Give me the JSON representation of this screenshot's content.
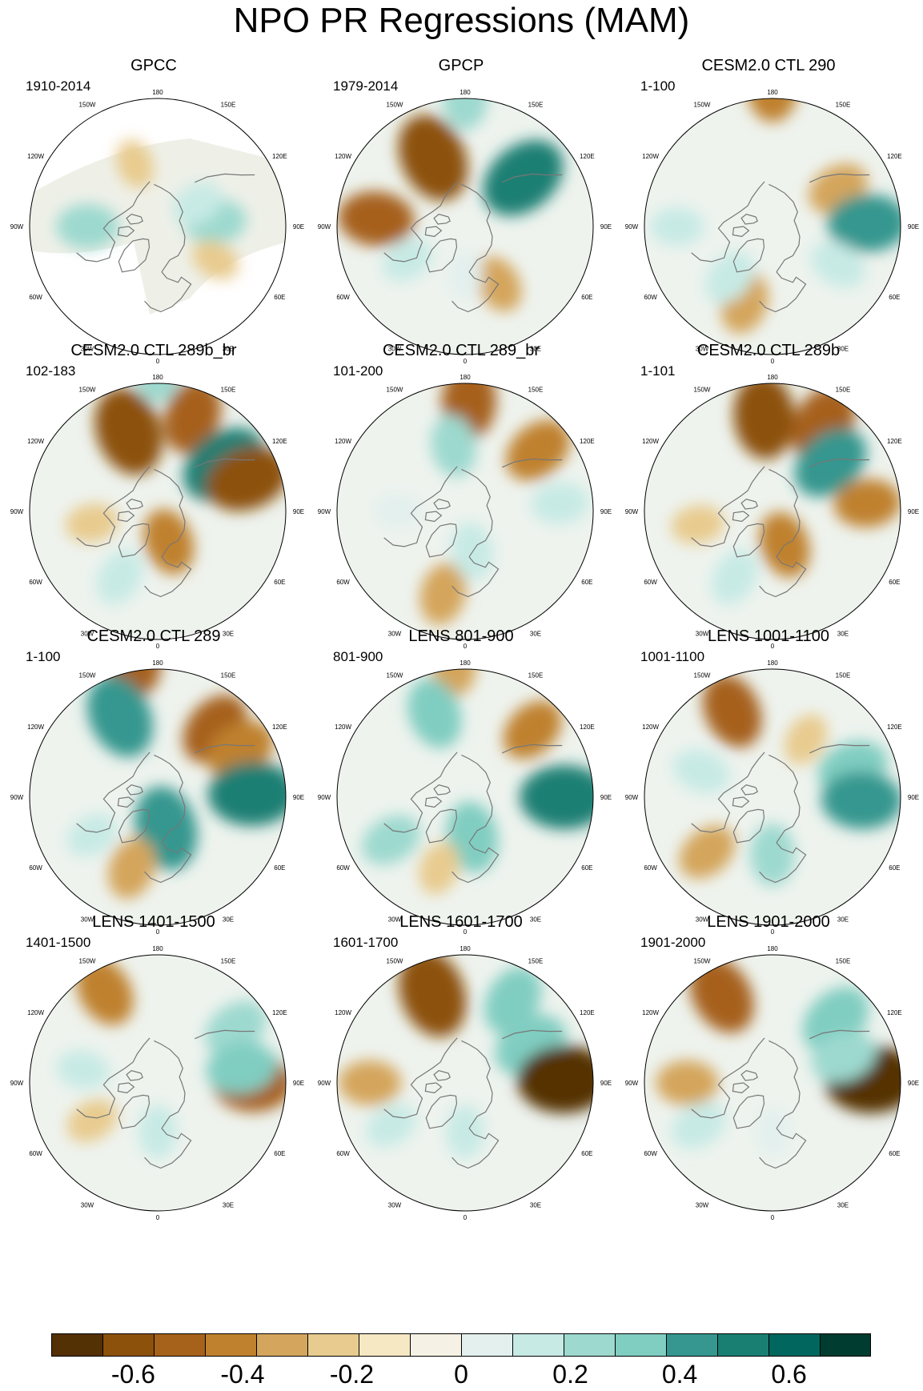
{
  "title": "NPO PR Regressions (MAM)",
  "longitude_labels": [
    "180",
    "150E",
    "120E",
    "90E",
    "60E",
    "30E",
    "0",
    "30W",
    "60W",
    "90W",
    "120W",
    "150W"
  ],
  "panels": [
    {
      "title": "GPCC",
      "period": "1910-2014",
      "partial_coverage": true,
      "anomalies": [
        {
          "lon": 270,
          "colat": 42,
          "value": 0.3
        },
        {
          "lon": 95,
          "colat": 35,
          "value": 0.3
        },
        {
          "lon": 120,
          "colat": 28,
          "value": 0.2
        },
        {
          "lon": 200,
          "colat": 40,
          "value": -0.15
        },
        {
          "lon": 60,
          "colat": 40,
          "value": -0.15
        }
      ]
    },
    {
      "title": "GPCP",
      "period": "1979-2014",
      "anomalies": [
        {
          "lon": 205,
          "colat": 45,
          "value": -0.6
        },
        {
          "lon": 130,
          "colat": 45,
          "value": 0.6
        },
        {
          "lon": 180,
          "colat": 70,
          "value": 0.3
        },
        {
          "lon": 265,
          "colat": 52,
          "value": -0.45
        },
        {
          "lon": 300,
          "colat": 40,
          "value": 0.2
        },
        {
          "lon": 30,
          "colat": 40,
          "value": -0.25
        },
        {
          "lon": 0,
          "colat": 30,
          "value": 0.15
        }
      ]
    },
    {
      "title": "CESM2.0 CTL 290",
      "period": "1-100",
      "anomalies": [
        {
          "lon": 180,
          "colat": 75,
          "value": -0.4
        },
        {
          "lon": 120,
          "colat": 45,
          "value": -0.3
        },
        {
          "lon": 92,
          "colat": 55,
          "value": 0.5
        },
        {
          "lon": 60,
          "colat": 45,
          "value": 0.25
        },
        {
          "lon": 340,
          "colat": 48,
          "value": -0.3
        },
        {
          "lon": 320,
          "colat": 40,
          "value": 0.25
        },
        {
          "lon": 270,
          "colat": 55,
          "value": 0.2
        }
      ]
    },
    {
      "title": "CESM2.0 CTL 289b_br",
      "period": "102-183",
      "anomalies": [
        {
          "lon": 200,
          "colat": 50,
          "value": -0.6
        },
        {
          "lon": 160,
          "colat": 58,
          "value": -0.45
        },
        {
          "lon": 125,
          "colat": 48,
          "value": 0.6
        },
        {
          "lon": 110,
          "colat": 55,
          "value": -0.55
        },
        {
          "lon": 180,
          "colat": 75,
          "value": 0.3
        },
        {
          "lon": 20,
          "colat": 20,
          "value": -0.35
        },
        {
          "lon": 330,
          "colat": 45,
          "value": 0.25
        },
        {
          "lon": 280,
          "colat": 40,
          "value": -0.2
        }
      ]
    },
    {
      "title": "CESM2.0 CTL 289_br",
      "period": "101-200",
      "anomalies": [
        {
          "lon": 178,
          "colat": 62,
          "value": -0.45
        },
        {
          "lon": 130,
          "colat": 55,
          "value": -0.4
        },
        {
          "lon": 190,
          "colat": 40,
          "value": 0.3
        },
        {
          "lon": 95,
          "colat": 55,
          "value": 0.25
        },
        {
          "lon": 345,
          "colat": 50,
          "value": -0.3
        },
        {
          "lon": 10,
          "colat": 25,
          "value": 0.25
        },
        {
          "lon": 270,
          "colat": 40,
          "value": 0.15
        }
      ]
    },
    {
      "title": "CESM2.0 CTL 289b",
      "period": "1-101",
      "anomalies": [
        {
          "lon": 185,
          "colat": 55,
          "value": -0.55
        },
        {
          "lon": 150,
          "colat": 58,
          "value": -0.5
        },
        {
          "lon": 130,
          "colat": 45,
          "value": 0.5
        },
        {
          "lon": 95,
          "colat": 55,
          "value": -0.35
        },
        {
          "lon": 20,
          "colat": 22,
          "value": -0.35
        },
        {
          "lon": 330,
          "colat": 45,
          "value": 0.25
        },
        {
          "lon": 280,
          "colat": 45,
          "value": -0.2
        }
      ]
    },
    {
      "title": "CESM2.0 CTL 289",
      "period": "1-100",
      "anomalies": [
        {
          "lon": 190,
          "colat": 75,
          "value": -0.45
        },
        {
          "lon": 205,
          "colat": 52,
          "value": 0.55
        },
        {
          "lon": 140,
          "colat": 52,
          "value": -0.45
        },
        {
          "lon": 120,
          "colat": 55,
          "value": -0.4
        },
        {
          "lon": 92,
          "colat": 55,
          "value": 0.6
        },
        {
          "lon": 15,
          "colat": 20,
          "value": 0.55
        },
        {
          "lon": 340,
          "colat": 45,
          "value": -0.3
        },
        {
          "lon": 300,
          "colat": 45,
          "value": 0.2
        }
      ]
    },
    {
      "title": "LENS 801-900",
      "period": "801-900",
      "anomalies": [
        {
          "lon": 185,
          "colat": 72,
          "value": -0.3
        },
        {
          "lon": 200,
          "colat": 52,
          "value": 0.4
        },
        {
          "lon": 135,
          "colat": 55,
          "value": -0.35
        },
        {
          "lon": 90,
          "colat": 57,
          "value": 0.6
        },
        {
          "lon": 10,
          "colat": 25,
          "value": 0.4
        },
        {
          "lon": 300,
          "colat": 50,
          "value": 0.3
        },
        {
          "lon": 340,
          "colat": 45,
          "value": -0.2
        }
      ]
    },
    {
      "title": "LENS 1001-1100",
      "period": "1001-1100",
      "anomalies": [
        {
          "lon": 205,
          "colat": 55,
          "value": -0.45
        },
        {
          "lon": 110,
          "colat": 50,
          "value": 0.4
        },
        {
          "lon": 88,
          "colat": 52,
          "value": 0.5
        },
        {
          "lon": 250,
          "colat": 45,
          "value": 0.25
        },
        {
          "lon": 0,
          "colat": 35,
          "value": 0.3
        },
        {
          "lon": 310,
          "colat": 50,
          "value": -0.3
        },
        {
          "lon": 150,
          "colat": 40,
          "value": -0.2
        }
      ]
    },
    {
      "title": "LENS 1401-1500",
      "period": "1401-1500",
      "anomalies": [
        {
          "lon": 210,
          "colat": 60,
          "value": -0.4
        },
        {
          "lon": 125,
          "colat": 55,
          "value": 0.35
        },
        {
          "lon": 90,
          "colat": 55,
          "value": -0.5
        },
        {
          "lon": 100,
          "colat": 50,
          "value": 0.4
        },
        {
          "lon": 0,
          "colat": 30,
          "value": 0.2
        },
        {
          "lon": 300,
          "colat": 45,
          "value": -0.2
        },
        {
          "lon": 260,
          "colat": 45,
          "value": 0.2
        }
      ]
    },
    {
      "title": "LENS 1601-1700",
      "period": "1601-1700",
      "anomalies": [
        {
          "lon": 200,
          "colat": 55,
          "value": -0.6
        },
        {
          "lon": 150,
          "colat": 55,
          "value": 0.4
        },
        {
          "lon": 120,
          "colat": 45,
          "value": 0.45
        },
        {
          "lon": 92,
          "colat": 57,
          "value": -0.65
        },
        {
          "lon": 270,
          "colat": 55,
          "value": -0.3
        },
        {
          "lon": 0,
          "colat": 30,
          "value": 0.2
        },
        {
          "lon": 300,
          "colat": 50,
          "value": 0.2
        }
      ]
    },
    {
      "title": "LENS 1901-2000",
      "period": "1901-2000",
      "anomalies": [
        {
          "lon": 210,
          "colat": 58,
          "value": -0.5
        },
        {
          "lon": 135,
          "colat": 52,
          "value": 0.45
        },
        {
          "lon": 92,
          "colat": 57,
          "value": -0.65
        },
        {
          "lon": 110,
          "colat": 45,
          "value": 0.35
        },
        {
          "lon": 300,
          "colat": 50,
          "value": 0.25
        },
        {
          "lon": 270,
          "colat": 50,
          "value": -0.3
        },
        {
          "lon": 0,
          "colat": 30,
          "value": 0.15
        }
      ]
    }
  ],
  "colorbar": {
    "colors": [
      "#543005",
      "#8c510a",
      "#a6611a",
      "#bf812d",
      "#d4a55c",
      "#e8cb8e",
      "#f6e8c3",
      "#f5f1e4",
      "#e3f0ee",
      "#c7eae5",
      "#9dd9cf",
      "#80cdc1",
      "#35978f",
      "#1a7f73",
      "#01665e",
      "#003c30"
    ],
    "bounds": [
      -0.75,
      -0.65,
      -0.55,
      -0.45,
      -0.35,
      -0.25,
      -0.15,
      -0.05,
      0.05,
      0.15,
      0.25,
      0.35,
      0.45,
      0.55,
      0.65,
      0.75
    ],
    "tick_labels": [
      "-0.6",
      "-0.4",
      "-0.2",
      "0",
      "0.2",
      "0.4",
      "0.6"
    ],
    "tick_values": [
      -0.6,
      -0.4,
      -0.2,
      0,
      0.2,
      0.4,
      0.6
    ]
  }
}
